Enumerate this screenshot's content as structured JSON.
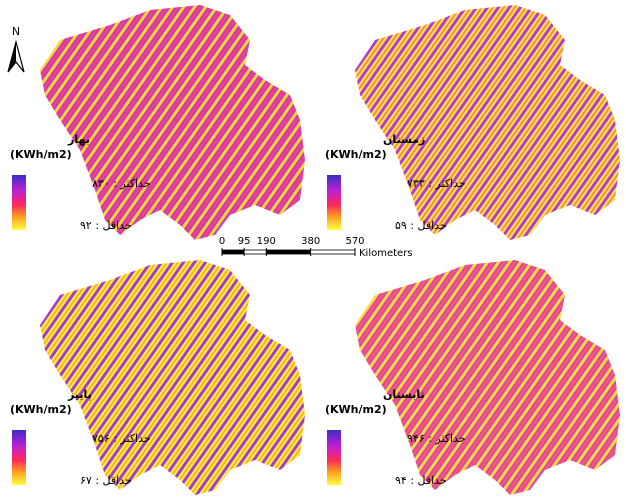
{
  "north": "N",
  "panels": [
    {
      "season": "بهار",
      "unit": "(KWh/m2)",
      "max_label": "حداکثر : ۸۳۰",
      "min_label": "حداقل : ۹۲"
    },
    {
      "season": "زمستان",
      "unit": "(KWh/m2)",
      "max_label": "حداکثر : ۷۳۳",
      "min_label": "حداقل : ۵۹"
    },
    {
      "season": "پاییز",
      "unit": "(KWh/m2)",
      "max_label": "حداکثر : ۷۵۶",
      "min_label": "حداقل : ۶۷"
    },
    {
      "season": "تابستان",
      "unit": "(KWh/m2)",
      "max_label": "حداکثر : ۹۴۶",
      "min_label": "حداقل : ۹۴"
    }
  ],
  "scale_bar": {
    "ticks": [
      0,
      95,
      190,
      380,
      570
    ],
    "unit": "Kilometers"
  }
}
